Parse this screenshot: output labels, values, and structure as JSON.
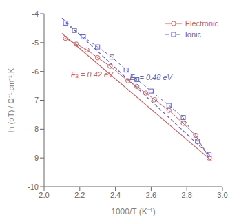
{
  "chart_data": {
    "type": "line",
    "xlabel": "1000/T (K⁻¹)",
    "ylabel": "ln (σT) / Ω⁻¹.cm⁻¹.K",
    "xlim": [
      2.0,
      3.0
    ],
    "ylim": [
      -10,
      -4
    ],
    "xticks": [
      {
        "value": 2.0,
        "label": "2.0"
      },
      2.2,
      2.4,
      2.6,
      2.8,
      {
        "value": 3.0,
        "label": "3.0"
      }
    ],
    "yticks": [
      -10,
      -9,
      -8,
      -7,
      -6,
      -5,
      -4
    ],
    "grid": false,
    "legend": "upper right",
    "series": [
      {
        "name": "Electronic",
        "color": "#c86060",
        "marker": "circle",
        "line_style": "solid",
        "x": [
          2.12,
          2.18,
          2.24,
          2.3,
          2.37,
          2.47,
          2.52,
          2.57,
          2.62,
          2.7,
          2.78,
          2.85,
          2.925
        ],
        "values": [
          -4.85,
          -5.05,
          -5.25,
          -5.52,
          -5.82,
          -6.32,
          -6.52,
          -6.75,
          -6.98,
          -7.35,
          -7.8,
          -8.22,
          -9.0
        ]
      },
      {
        "name": "Ionic",
        "color": "#6060c8",
        "marker": "square",
        "line_style": "dashed",
        "x": [
          2.12,
          2.17,
          2.22,
          2.3,
          2.38,
          2.46,
          2.52,
          2.6,
          2.7,
          2.78,
          2.86,
          2.925
        ],
        "values": [
          -4.32,
          -4.58,
          -4.8,
          -5.15,
          -5.5,
          -5.95,
          -6.28,
          -6.68,
          -7.18,
          -7.6,
          -8.42,
          -8.88
        ]
      }
    ],
    "fits": [
      {
        "color": "#c86060",
        "line_style": "solid",
        "x": [
          2.1,
          2.94
        ],
        "values": [
          -4.68,
          -9.1
        ]
      },
      {
        "color": "#6060c8",
        "line_style": "dashed",
        "x": [
          2.1,
          2.94
        ],
        "values": [
          -4.15,
          -8.98
        ]
      }
    ],
    "annotations": [
      {
        "text": "Eₐ = 0.42 eV",
        "x": 2.13,
        "y": -6.1,
        "color": "#c86060"
      },
      {
        "text": "Eₐ = 0.48 eV",
        "x": 2.46,
        "y": -6.2,
        "color": "#6060c8"
      }
    ]
  }
}
